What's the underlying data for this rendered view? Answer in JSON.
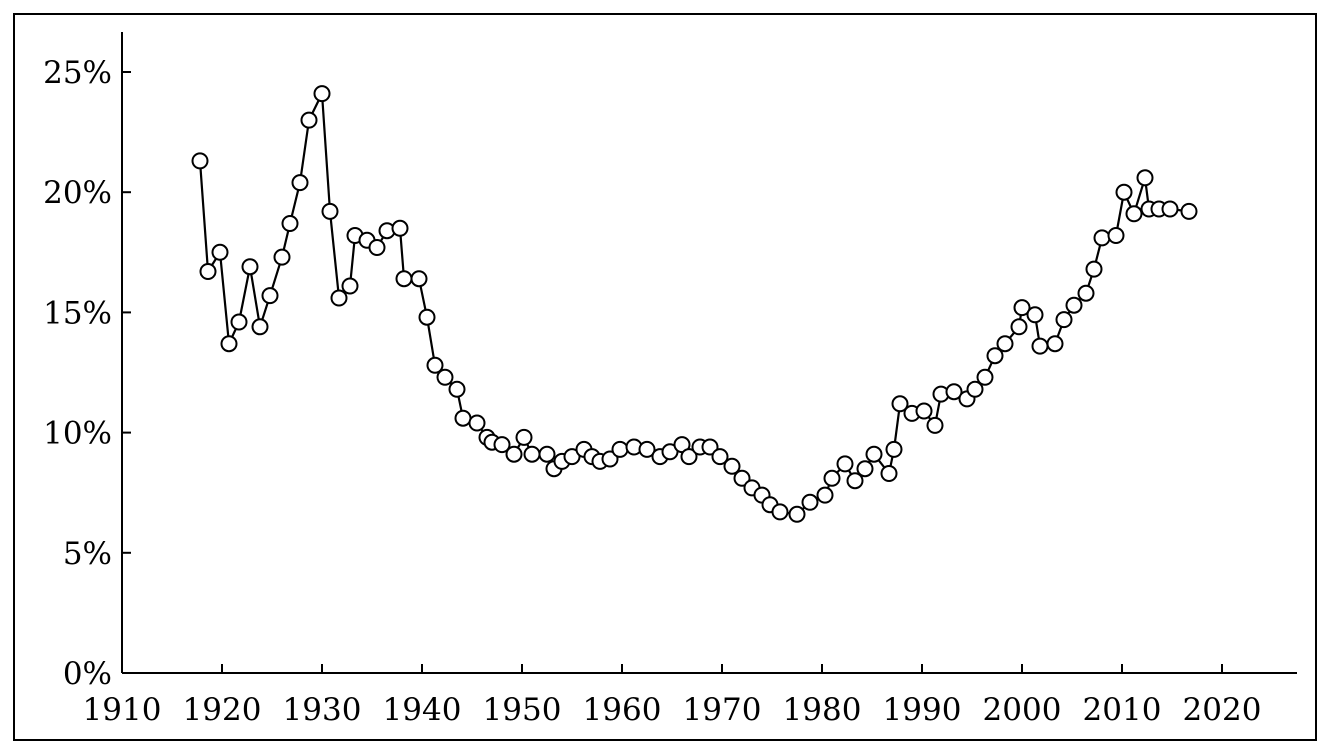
{
  "chart_data": {
    "type": "line",
    "title": "",
    "xlabel": "",
    "ylabel": "",
    "xlim": [
      1910,
      2027
    ],
    "ylim": [
      0,
      26.5
    ],
    "xticks": [
      1910,
      1920,
      1930,
      1940,
      1950,
      1960,
      1970,
      1980,
      1990,
      2000,
      2010,
      2020
    ],
    "xtick_labels": [
      "1910",
      "1920",
      "1930",
      "1940",
      "1950",
      "1960",
      "1970",
      "1980",
      "1990",
      "2000",
      "2010",
      "2020"
    ],
    "yticks": [
      0,
      5,
      10,
      15,
      20,
      25
    ],
    "ytick_labels": [
      "0%",
      "5%",
      "10%",
      "15%",
      "20%",
      "25%"
    ],
    "grid": false,
    "legend": "none",
    "marker": "open-circle",
    "line_color": "#000000",
    "series": [
      {
        "x": [
          1917.8,
          1918.6,
          1919.8,
          1920.7,
          1921.7,
          1922.8,
          1923.8,
          1924.8,
          1926.0,
          1926.8,
          1927.8,
          1928.7,
          1930.0,
          1930.8,
          1931.7,
          1932.8,
          1933.3,
          1934.5,
          1935.5,
          1936.5,
          1937.8,
          1938.2,
          1939.7,
          1940.5,
          1941.3,
          1942.3,
          1943.5,
          1944.1,
          1945.5,
          1946.5,
          1947.0,
          1948.0,
          1949.2,
          1950.2,
          1951.0,
          1952.5,
          1953.2,
          1954.0,
          1955.0,
          1956.2,
          1957.0,
          1957.8,
          1958.8,
          1959.8,
          1961.2,
          1962.5,
          1963.8,
          1964.8,
          1966.0,
          1966.7,
          1967.8,
          1968.8,
          1969.8,
          1971.0,
          1972.0,
          1973.0,
          1974.0,
          1974.8,
          1975.8,
          1977.5,
          1978.8,
          1980.3,
          1981.0,
          1982.3,
          1983.3,
          1984.3,
          1985.2,
          1986.7,
          1987.2,
          1987.8,
          1989.0,
          1990.2,
          1991.3,
          1991.9,
          1993.2,
          1994.5,
          1995.3,
          1996.3,
          1997.3,
          1998.3,
          1999.7,
          2000.0,
          2001.3,
          2001.8,
          2003.3,
          2004.2,
          2005.2,
          2006.4,
          2007.2,
          2008.0,
          2009.4,
          2010.2,
          2011.2,
          2012.3,
          2012.7,
          2013.7,
          2014.8,
          2016.7
        ],
        "y": [
          21.3,
          16.7,
          17.5,
          13.7,
          14.6,
          16.9,
          14.4,
          15.7,
          17.3,
          18.7,
          20.4,
          23.0,
          24.1,
          19.2,
          15.6,
          16.1,
          18.2,
          18.0,
          17.7,
          18.4,
          18.5,
          16.4,
          16.4,
          14.8,
          12.8,
          12.3,
          11.8,
          10.6,
          10.4,
          9.8,
          9.6,
          9.5,
          9.1,
          9.8,
          9.1,
          9.1,
          8.5,
          8.8,
          9.0,
          9.3,
          9.0,
          8.8,
          8.9,
          9.3,
          9.4,
          9.3,
          9.0,
          9.2,
          9.5,
          9.0,
          9.4,
          9.4,
          9.0,
          8.6,
          8.1,
          7.7,
          7.4,
          7.0,
          6.7,
          6.6,
          7.1,
          7.4,
          8.1,
          8.7,
          8.0,
          8.5,
          9.1,
          8.3,
          9.3,
          11.2,
          10.8,
          10.9,
          10.3,
          11.6,
          11.7,
          11.4,
          11.8,
          12.3,
          13.2,
          13.7,
          14.4,
          15.2,
          14.9,
          13.6,
          13.7,
          14.7,
          15.3,
          15.8,
          16.8,
          18.1,
          18.2,
          20.0,
          19.1,
          20.6,
          19.3,
          19.3,
          19.3,
          19.2
        ]
      }
    ]
  }
}
